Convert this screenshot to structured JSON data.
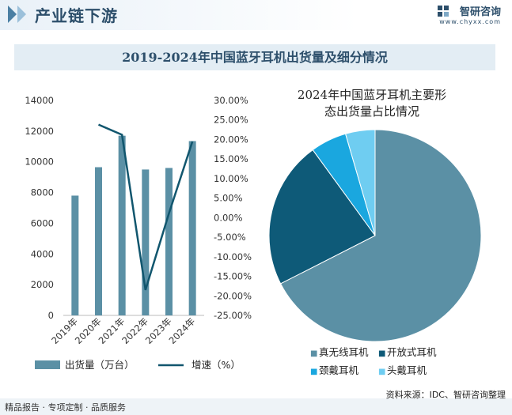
{
  "header": {
    "title": "产业链下游"
  },
  "brand": {
    "name": "智研咨询",
    "url": "www.chyxx.com"
  },
  "main_title": "2019-2024年中国蓝牙耳机出货量及细分情况",
  "footer": {
    "left": "精品报告 · 专项定制 · 品质服务",
    "source": "资料来源：IDC、智研咨询整理"
  },
  "colors": {
    "bar": "#5b90a5",
    "line": "#11566e",
    "pie": [
      "#5b90a5",
      "#0e5a78",
      "#1aa7df",
      "#6fcdf1"
    ]
  },
  "chart_data": [
    {
      "type": "bar+line",
      "categories": [
        "2019年",
        "2020年",
        "2021年",
        "2022年",
        "2023年",
        "2024年"
      ],
      "series": [
        {
          "name": "出货量（万台）",
          "type": "bar",
          "axis": "left",
          "values": [
            7800,
            9650,
            11700,
            9500,
            9600,
            11350
          ]
        },
        {
          "name": "增速（%）",
          "type": "line",
          "axis": "right",
          "values": [
            null,
            23.8,
            21.2,
            -18.5,
            1.1,
            19.5
          ]
        }
      ],
      "y_left": {
        "min": 0,
        "max": 14000,
        "step": 2000,
        "ticks": [
          "0",
          "2000",
          "4000",
          "6000",
          "8000",
          "10000",
          "12000",
          "14000"
        ]
      },
      "y_right": {
        "min": -25,
        "max": 30,
        "step": 5,
        "ticks": [
          "-25.00%",
          "-20.00%",
          "-15.00%",
          "-10.00%",
          "-5.00%",
          "0.00%",
          "5.00%",
          "10.00%",
          "15.00%",
          "20.00%",
          "25.00%",
          "30.00%"
        ]
      },
      "legend_position": "bottom",
      "grid": false
    },
    {
      "type": "pie",
      "title_lines": [
        "2024年中国蓝牙耳机主要形",
        "态出货量占比情况"
      ],
      "labels": [
        "真无线耳机",
        "开放式耳机",
        "颈戴耳机",
        "头戴耳机"
      ],
      "values": [
        67.5,
        22.5,
        5.5,
        4.5
      ],
      "legend_position": "bottom",
      "legend_marker": "■"
    }
  ]
}
